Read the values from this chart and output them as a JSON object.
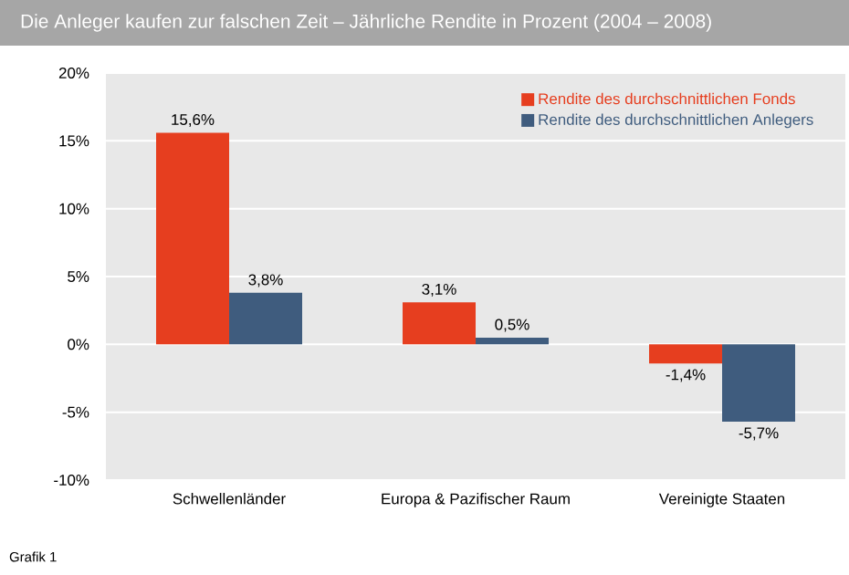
{
  "chart_data": {
    "type": "bar",
    "title": "Die Anleger kaufen zur falschen Zeit – Jährliche Rendite in Prozent (2004 – 2008)",
    "categories": [
      "Schwellenländer",
      "Europa & Pazifischer Raum",
      "Vereinigte Staaten"
    ],
    "series": [
      {
        "name": "Rendite des durchschnittlichen Fonds",
        "color": "#e63e1f",
        "values": [
          15.6,
          3.1,
          -1.4
        ],
        "value_labels": [
          "15,6%",
          "3,1%",
          "-1,4%"
        ]
      },
      {
        "name": "Rendite des durchschnittlichen Anlegers",
        "color": "#3f5c7e",
        "values": [
          3.8,
          0.5,
          -5.7
        ],
        "value_labels": [
          "3,8%",
          "0,5%",
          "-5,7%"
        ]
      }
    ],
    "ylim": [
      -10,
      20
    ],
    "yticks": [
      {
        "value": -10,
        "label": "-10%"
      },
      {
        "value": -5,
        "label": "-5%"
      },
      {
        "value": 0,
        "label": "0%"
      },
      {
        "value": 5,
        "label": "5%"
      },
      {
        "value": 10,
        "label": "10%"
      },
      {
        "value": 15,
        "label": "15%"
      },
      {
        "value": 20,
        "label": "20%"
      }
    ],
    "grid": "y",
    "legend": "top right",
    "annotations": [
      "Grafik 1"
    ]
  }
}
